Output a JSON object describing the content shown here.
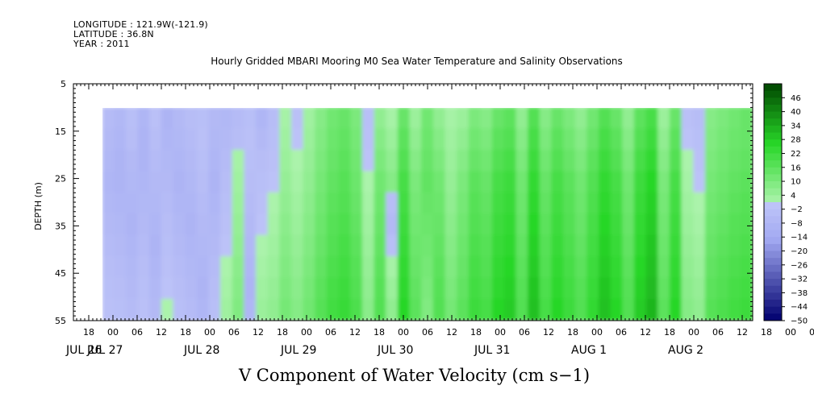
{
  "header": {
    "longitude": "LONGITUDE : 121.9W(-121.9)",
    "latitude": "LATITUDE : 36.8N",
    "year": "YEAR : 2011"
  },
  "colors": {
    "negative_mid": "#aab0f0",
    "neutral_light": "#a8f0a8",
    "positive_mid": "#60e060",
    "positive_strong": "#20cc20",
    "deep_negative": "#000080",
    "deep_positive": "#005000"
  },
  "chart_data": {
    "type": "heatmap",
    "title": "Hourly Gridded MBARI Mooring M0 Sea Water Temperature and Salinity Observations",
    "xlabel": "V Component of Water Velocity (cm s−1)",
    "ylabel": "DEPTH (m)",
    "y_ticks": [
      "5",
      "15",
      "25",
      "35",
      "45",
      "55"
    ],
    "ylim": [
      55,
      5
    ],
    "x_hour_ticks": [
      "18",
      "00",
      "06",
      "12",
      "18",
      "00",
      "06",
      "12",
      "18",
      "00",
      "06",
      "12",
      "18",
      "00",
      "06",
      "12",
      "18",
      "00",
      "06",
      "12",
      "18",
      "00",
      "06",
      "12",
      "18",
      "00",
      "06",
      "12",
      "18",
      "00",
      "06",
      "12",
      "18",
      "00",
      "06",
      "12",
      "18",
      "00",
      "06",
      "12",
      "18",
      "00",
      "06",
      "12"
    ],
    "x_date_labels": [
      "JUL 26",
      "JUL 27",
      "JUL 28",
      "JUL 29",
      "JUL 30",
      "JUL 31",
      "AUG  1",
      "AUG  2"
    ],
    "colorbar_labels": [
      "46",
      "40",
      "34",
      "28",
      "22",
      "16",
      "10",
      "4",
      "-2",
      "-8",
      "-14",
      "-20",
      "-26",
      "-32",
      "-38",
      "-44",
      "-50"
    ],
    "colorbar_range": [
      -50,
      52
    ],
    "data_depth_range": [
      10,
      55
    ],
    "time_columns": [
      "Jul 26 21:00",
      "Jul 27 00:00",
      "Jul 27 03:00",
      "Jul 27 06:00",
      "Jul 27 09:00",
      "Jul 27 12:00",
      "Jul 27 15:00",
      "Jul 27 18:00",
      "Jul 27 21:00",
      "Jul 28 00:00",
      "Jul 28 03:00",
      "Jul 28 06:00",
      "Jul 28 09:00",
      "Jul 28 12:00",
      "Jul 28 15:00",
      "Jul 28 18:00",
      "Jul 28 21:00",
      "Jul 29 00:00",
      "Jul 29 03:00",
      "Jul 29 06:00",
      "Jul 29 09:00",
      "Jul 29 12:00",
      "Jul 29 15:00",
      "Jul 29 18:00",
      "Jul 29 21:00",
      "Jul 30 00:00",
      "Jul 30 03:00",
      "Jul 30 06:00",
      "Jul 30 09:00",
      "Jul 30 12:00",
      "Jul 30 15:00",
      "Jul 30 18:00",
      "Jul 30 21:00",
      "Jul 31 00:00",
      "Jul 31 03:00",
      "Jul 31 06:00",
      "Jul 31 09:00",
      "Jul 31 12:00",
      "Jul 31 15:00",
      "Jul 31 18:00",
      "Jul 31 21:00",
      "Aug 1 00:00",
      "Aug 1 03:00",
      "Aug 1 06:00",
      "Aug 1 09:00",
      "Aug 1 12:00",
      "Aug 1 15:00",
      "Aug 1 18:00",
      "Aug 1 21:00",
      "Aug 2 00:00",
      "Aug 2 03:00",
      "Aug 2 06:00",
      "Aug 2 09:00",
      "Aug 2 12:00",
      "Aug 2 15:00"
    ],
    "depth_rows": [
      10,
      15,
      20,
      25,
      30,
      35,
      40,
      45,
      50,
      55
    ],
    "values": [
      [
        -5,
        -7,
        -3,
        -8,
        -2,
        -9,
        -6,
        -4,
        -3,
        -6,
        -7,
        -5,
        -3,
        -8,
        -4,
        2,
        -2,
        3,
        8,
        12,
        14,
        10,
        -3,
        6,
        2,
        14,
        4,
        12,
        6,
        2,
        4,
        10,
        8,
        14,
        16,
        6,
        18,
        8,
        14,
        10,
        6,
        12,
        18,
        14,
        6,
        16,
        20,
        4,
        14,
        -2,
        -4,
        8,
        10,
        12,
        14
      ],
      [
        -6,
        -8,
        -4,
        -9,
        -4,
        -8,
        -7,
        -5,
        -2,
        -7,
        -6,
        -4,
        -2,
        -6,
        -3,
        3,
        -1,
        4,
        9,
        13,
        15,
        11,
        -2,
        8,
        4,
        16,
        6,
        13,
        8,
        3,
        6,
        12,
        10,
        16,
        18,
        8,
        20,
        10,
        16,
        12,
        8,
        14,
        20,
        16,
        8,
        18,
        22,
        6,
        16,
        -1,
        -3,
        9,
        11,
        13,
        14
      ],
      [
        -7,
        -9,
        -6,
        -9,
        -5,
        -7,
        -8,
        -6,
        -3,
        -8,
        -5,
        2,
        -3,
        -4,
        -2,
        4,
        1,
        5,
        10,
        14,
        16,
        12,
        -1,
        10,
        6,
        18,
        8,
        14,
        10,
        4,
        8,
        14,
        12,
        18,
        20,
        10,
        22,
        12,
        18,
        14,
        10,
        16,
        22,
        18,
        10,
        20,
        24,
        8,
        18,
        1,
        -2,
        10,
        12,
        14,
        15
      ],
      [
        -8,
        -9,
        -7,
        -8,
        -6,
        -6,
        -9,
        -7,
        -4,
        -9,
        -4,
        3,
        -4,
        -3,
        -1,
        5,
        2,
        6,
        11,
        15,
        17,
        13,
        1,
        12,
        8,
        20,
        10,
        15,
        12,
        5,
        10,
        16,
        14,
        20,
        22,
        12,
        24,
        14,
        20,
        16,
        12,
        18,
        24,
        20,
        12,
        22,
        26,
        10,
        20,
        2,
        -1,
        11,
        13,
        15,
        16
      ],
      [
        -7,
        -8,
        -8,
        -7,
        -7,
        -5,
        -8,
        -8,
        -5,
        -8,
        -3,
        4,
        -5,
        -2,
        1,
        6,
        3,
        7,
        12,
        16,
        18,
        14,
        2,
        13,
        -4,
        21,
        11,
        14,
        13,
        6,
        11,
        17,
        15,
        21,
        23,
        13,
        25,
        15,
        21,
        17,
        13,
        19,
        25,
        21,
        13,
        23,
        27,
        11,
        21,
        3,
        1,
        12,
        14,
        16,
        17
      ],
      [
        -6,
        -7,
        -9,
        -6,
        -8,
        -4,
        -7,
        -9,
        -6,
        -7,
        -2,
        5,
        -6,
        -1,
        2,
        7,
        4,
        8,
        13,
        17,
        19,
        15,
        3,
        14,
        -6,
        22,
        12,
        13,
        14,
        7,
        12,
        18,
        16,
        22,
        24,
        14,
        26,
        16,
        22,
        18,
        14,
        20,
        26,
        22,
        14,
        24,
        28,
        12,
        22,
        4,
        2,
        13,
        15,
        17,
        18
      ],
      [
        -5,
        -6,
        -8,
        -5,
        -9,
        -3,
        -6,
        -8,
        -7,
        -6,
        -1,
        6,
        -7,
        1,
        3,
        8,
        5,
        9,
        14,
        18,
        20,
        16,
        4,
        15,
        -3,
        23,
        13,
        12,
        15,
        8,
        13,
        19,
        17,
        23,
        25,
        15,
        27,
        17,
        23,
        19,
        15,
        21,
        27,
        23,
        15,
        25,
        29,
        13,
        23,
        5,
        3,
        14,
        16,
        18,
        19
      ],
      [
        -4,
        -5,
        -7,
        -4,
        -8,
        -2,
        -5,
        -7,
        -8,
        -5,
        1,
        7,
        -8,
        2,
        4,
        9,
        6,
        10,
        15,
        19,
        21,
        17,
        5,
        16,
        2,
        24,
        14,
        11,
        16,
        9,
        14,
        20,
        18,
        24,
        26,
        16,
        28,
        18,
        24,
        20,
        16,
        22,
        28,
        24,
        16,
        26,
        30,
        14,
        24,
        6,
        4,
        15,
        17,
        19,
        20
      ],
      [
        -3,
        -4,
        -6,
        -3,
        -7,
        -1,
        -4,
        -6,
        -9,
        -4,
        2,
        8,
        -9,
        3,
        5,
        10,
        7,
        11,
        16,
        20,
        22,
        18,
        6,
        17,
        4,
        25,
        15,
        10,
        17,
        10,
        15,
        21,
        19,
        25,
        27,
        17,
        29,
        19,
        25,
        21,
        17,
        23,
        29,
        25,
        17,
        27,
        31,
        15,
        25,
        7,
        5,
        16,
        18,
        20,
        21
      ],
      [
        -2,
        -3,
        -5,
        -2,
        -6,
        1,
        -3,
        -5,
        -8,
        -3,
        3,
        9,
        -8,
        4,
        6,
        11,
        8,
        12,
        17,
        21,
        23,
        19,
        7,
        18,
        6,
        26,
        16,
        9,
        18,
        11,
        16,
        22,
        20,
        26,
        28,
        18,
        30,
        20,
        26,
        22,
        18,
        24,
        30,
        26,
        18,
        28,
        32,
        16,
        26,
        8,
        6,
        17,
        19,
        21,
        22
      ]
    ]
  }
}
